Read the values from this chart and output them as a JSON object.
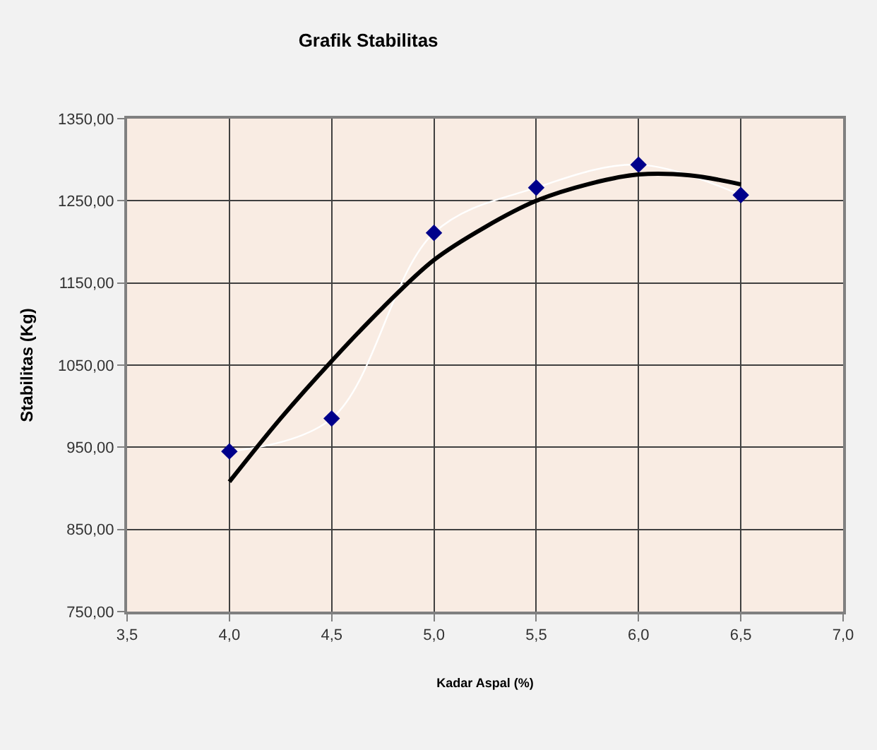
{
  "chart_data": {
    "type": "scatter",
    "title": "Grafik Stabilitas",
    "xlabel": "Kadar Aspal (%)",
    "ylabel": "Stabilitas (Kg)",
    "xlim": [
      3.5,
      7.0
    ],
    "xticks": [
      {
        "value": 3.5,
        "label": "3,5"
      },
      {
        "value": 4.0,
        "label": "4,0"
      },
      {
        "value": 4.5,
        "label": "4,5"
      },
      {
        "value": 5.0,
        "label": "5,0"
      },
      {
        "value": 5.5,
        "label": "5,5"
      },
      {
        "value": 6.0,
        "label": "6,0"
      },
      {
        "value": 6.5,
        "label": "6,5"
      },
      {
        "value": 7.0,
        "label": "7,0"
      }
    ],
    "ylim": [
      750,
      1350
    ],
    "yticks": [
      {
        "value": 750,
        "label": "750,00"
      },
      {
        "value": 850,
        "label": "850,00"
      },
      {
        "value": 950,
        "label": "950,00"
      },
      {
        "value": 1050,
        "label": "1050,00"
      },
      {
        "value": 1150,
        "label": "1150,00"
      },
      {
        "value": 1250,
        "label": "1250,00"
      },
      {
        "value": 1350,
        "label": "1350,00"
      }
    ],
    "grid": true,
    "series": [
      {
        "type": "line",
        "color": "#ffffff",
        "marker": "none",
        "x": [
          4.0,
          4.5,
          5.0,
          5.5,
          6.0,
          6.5
        ],
        "values": [
          945,
          985,
          1211,
          1266,
          1294,
          1257
        ]
      },
      {
        "color": "#00008b",
        "marker": "diamond",
        "x": [
          4.0,
          4.5,
          5.0,
          5.5,
          6.0,
          6.5
        ],
        "values": [
          945,
          985,
          1211,
          1266,
          1294,
          1257
        ]
      },
      {
        "type": "line",
        "color": "#000000",
        "marker": "none",
        "x": [
          4.0,
          4.25,
          4.5,
          4.75,
          5.0,
          5.25,
          5.5,
          5.75,
          6.0,
          6.25,
          6.5
        ],
        "values": [
          908,
          985,
          1055,
          1120,
          1178,
          1218,
          1250,
          1270,
          1282,
          1281,
          1270
        ]
      }
    ]
  }
}
